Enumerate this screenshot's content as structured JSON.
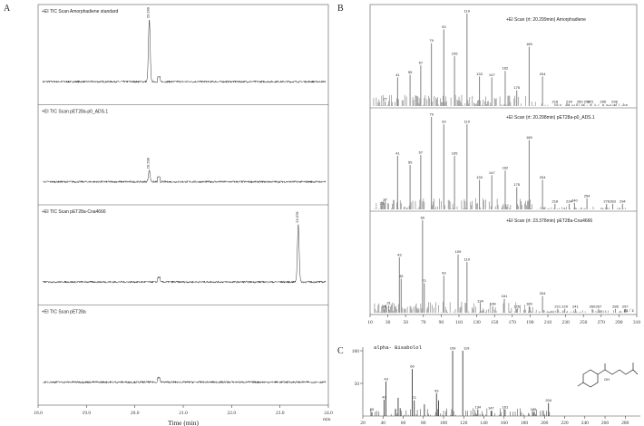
{
  "panel_letters": {
    "a": "A",
    "b": "B",
    "c": "C"
  },
  "chart_data": [
    {
      "type": "line",
      "panel": "A",
      "xlabel": "Time (min)",
      "x_unit": "min",
      "xlim": [
        18.0,
        24.0
      ],
      "x_ticks": [
        "18.0",
        "19.0",
        "20.0",
        "21.0",
        "22.0",
        "23.0",
        "24.0"
      ],
      "traces": [
        {
          "name": "+EI TIC Scan Amorphadiene standard",
          "peaks": [
            {
              "rt": 20.299,
              "label": "20.299",
              "height": 0.88
            }
          ]
        },
        {
          "name": "+EI TIC Scan pET28a-p0_ADS.1",
          "peaks": [
            {
              "rt": 20.298,
              "label": "20.298",
              "height": 0.16
            }
          ]
        },
        {
          "name": "+EI TIC Scan pET28a-Cna4666",
          "peaks": [
            {
              "rt": 23.378,
              "label": "23.378",
              "height": 0.82
            }
          ]
        },
        {
          "name": "+EI TIC Scan pET28a",
          "peaks": []
        }
      ]
    },
    {
      "type": "bar",
      "panel": "B",
      "xlabel": "m / z",
      "xlim": [
        10,
        310
      ],
      "x_ticks": [
        "10",
        "30",
        "50",
        "70",
        "90",
        "110",
        "130",
        "150",
        "170",
        "190",
        "210",
        "230",
        "250",
        "270",
        "290",
        "310"
      ],
      "spectra": [
        {
          "title": "+EI Scan (rt: 20.299min) Amorphadiene",
          "peaks": [
            [
              27,
              5
            ],
            [
              41,
              31
            ],
            [
              55,
              34
            ],
            [
              67,
              44
            ],
            [
              79,
              68
            ],
            [
              93,
              83
            ],
            [
              105,
              54
            ],
            [
              119,
              100
            ],
            [
              133,
              32
            ],
            [
              147,
              31
            ],
            [
              162,
              38
            ],
            [
              175,
              17
            ],
            [
              189,
              64
            ],
            [
              204,
              32
            ],
            [
              218,
              2
            ],
            [
              234,
              2
            ],
            [
              250,
              2
            ],
            [
              258,
              2
            ],
            [
              272,
              2
            ],
            [
              285,
              2
            ],
            [
              298,
              2
            ]
          ],
          "labels": [
            "27",
            "41",
            "55",
            "67",
            "79",
            "93",
            "105",
            "119",
            "133",
            "147",
            "162",
            "175",
            "189",
            "204",
            "218",
            "234",
            "250 258",
            "272",
            "285",
            "298"
          ]
        },
        {
          "title": "+EI Scan (rt: 20.298min) pET28a-p0_ADS.1",
          "peaks": [
            [
              23,
              4
            ],
            [
              27,
              8
            ],
            [
              41,
              58
            ],
            [
              55,
              48
            ],
            [
              67,
              59
            ],
            [
              79,
              100
            ],
            [
              93,
              92
            ],
            [
              105,
              58
            ],
            [
              119,
              92
            ],
            [
              133,
              32
            ],
            [
              147,
              37
            ],
            [
              162,
              42
            ],
            [
              175,
              24
            ],
            [
              189,
              75
            ],
            [
              204,
              32
            ],
            [
              218,
              6
            ],
            [
              234,
              6
            ],
            [
              240,
              7
            ],
            [
              254,
              12
            ],
            [
              276,
              6
            ],
            [
              283,
              6
            ],
            [
              294,
              6
            ]
          ],
          "labels": [
            "23",
            "27",
            "41",
            "55",
            "67",
            "79",
            "93",
            "105",
            "119",
            "133",
            "147",
            "162",
            "175",
            "189",
            "204",
            "218",
            "234",
            "240",
            "254",
            "276",
            "283",
            "294"
          ]
        },
        {
          "title": "+EI Scan (rt: 23.378min) pET28a-Cna4666",
          "peaks": [
            [
              26,
              4
            ],
            [
              31,
              8
            ],
            [
              43,
              60
            ],
            [
              45,
              37
            ],
            [
              69,
              100
            ],
            [
              71,
              32
            ],
            [
              93,
              40
            ],
            [
              109,
              63
            ],
            [
              119,
              55
            ],
            [
              134,
              10
            ],
            [
              148,
              7
            ],
            [
              161,
              15
            ],
            [
              175,
              4
            ],
            [
              189,
              7
            ],
            [
              204,
              18
            ],
            [
              221,
              4
            ],
            [
              229,
              4
            ],
            [
              241,
              4
            ],
            [
              260,
              4
            ],
            [
              267,
              4
            ],
            [
              286,
              4
            ],
            [
              297,
              4
            ]
          ],
          "labels": [
            "26",
            "31",
            "43",
            "45",
            "69",
            "71",
            "93",
            "109",
            "119",
            "134",
            "148",
            "161",
            "175",
            "189",
            "204",
            "221",
            "229",
            "241",
            "260",
            "267",
            "286",
            "297"
          ]
        }
      ]
    },
    {
      "type": "bar",
      "panel": "C",
      "title": "alpha- Bisabolol",
      "xlim": [
        20,
        295
      ],
      "ylim": [
        0,
        100
      ],
      "y_tick_labels": [
        "50",
        "100"
      ],
      "x_ticks": [
        "20",
        "40",
        "60",
        "80",
        "100",
        "120",
        "140",
        "160",
        "180",
        "200",
        "220",
        "240",
        "260",
        "280"
      ],
      "structure_label": "OH",
      "peaks": [
        [
          29,
          6
        ],
        [
          41,
          25
        ],
        [
          43,
          53
        ],
        [
          55,
          28
        ],
        [
          57,
          12
        ],
        [
          69,
          72
        ],
        [
          71,
          24
        ],
        [
          81,
          18
        ],
        [
          93,
          35
        ],
        [
          95,
          24
        ],
        [
          109,
          100
        ],
        [
          119,
          100
        ],
        [
          134,
          10
        ],
        [
          147,
          8
        ],
        [
          161,
          10
        ],
        [
          189,
          6
        ],
        [
          204,
          20
        ]
      ],
      "labels": [
        "29",
        "41",
        "43",
        "69",
        "71",
        "93",
        "109",
        "119",
        "134",
        "147",
        "161",
        "189",
        "204"
      ]
    }
  ]
}
